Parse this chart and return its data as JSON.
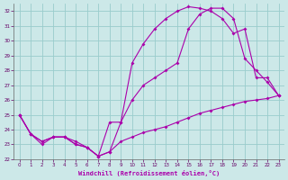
{
  "xlabel": "Windchill (Refroidissement éolien,°C)",
  "bg_color": "#cce8e8",
  "grid_color": "#99cccc",
  "line_color": "#aa00aa",
  "xlim": [
    -0.5,
    23.5
  ],
  "ylim": [
    22,
    32.5
  ],
  "xticks": [
    0,
    1,
    2,
    3,
    4,
    5,
    6,
    7,
    8,
    9,
    10,
    11,
    12,
    13,
    14,
    15,
    16,
    17,
    18,
    19,
    20,
    21,
    22,
    23
  ],
  "yticks": [
    22,
    23,
    24,
    25,
    26,
    27,
    28,
    29,
    30,
    31,
    32
  ],
  "line1_x": [
    0,
    1,
    2,
    3,
    4,
    5,
    6,
    7,
    8,
    9,
    10,
    11,
    12,
    13,
    14,
    15,
    16,
    17,
    18,
    19,
    20,
    21,
    22,
    23
  ],
  "line1_y": [
    25.0,
    23.7,
    23.2,
    23.5,
    23.5,
    23.2,
    22.8,
    22.2,
    22.5,
    23.2,
    23.5,
    23.8,
    24.0,
    24.2,
    24.5,
    24.8,
    25.1,
    25.3,
    25.5,
    25.7,
    25.9,
    26.0,
    26.1,
    26.3
  ],
  "line2_x": [
    0,
    1,
    2,
    3,
    4,
    5,
    6,
    7,
    8,
    9,
    10,
    11,
    12,
    13,
    14,
    15,
    16,
    17,
    18,
    19,
    20,
    21,
    22,
    23
  ],
  "line2_y": [
    25.0,
    23.7,
    23.0,
    23.5,
    23.5,
    23.0,
    22.8,
    22.2,
    22.5,
    24.5,
    28.5,
    29.8,
    30.8,
    31.5,
    32.0,
    32.3,
    32.2,
    32.0,
    31.5,
    30.5,
    30.8,
    27.5,
    27.5,
    26.3
  ],
  "line3_x": [
    0,
    1,
    2,
    3,
    4,
    5,
    6,
    7,
    8,
    9,
    10,
    11,
    12,
    13,
    14,
    15,
    16,
    17,
    18,
    19,
    20,
    21,
    22,
    23
  ],
  "line3_y": [
    25.0,
    23.7,
    23.2,
    23.5,
    23.5,
    23.0,
    22.8,
    22.2,
    24.5,
    24.5,
    26.0,
    27.0,
    27.5,
    28.0,
    28.5,
    30.8,
    31.8,
    32.2,
    32.2,
    31.5,
    28.8,
    28.0,
    27.2,
    26.3
  ]
}
